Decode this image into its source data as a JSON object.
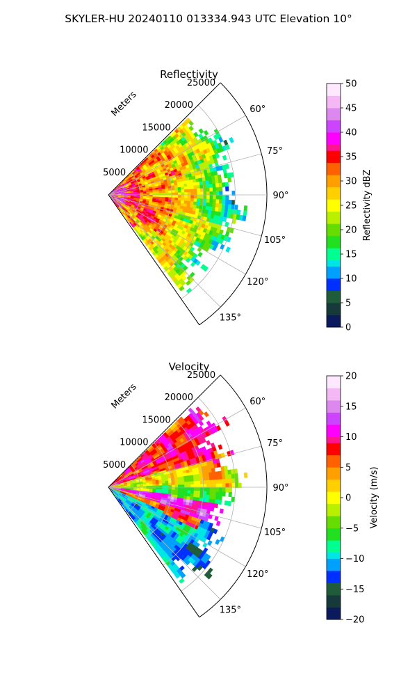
{
  "figure": {
    "suptitle": "SKYLER-HU  20240110  013334.943 UTC Elevation 10°"
  },
  "chart_data": [
    {
      "type": "heatmap",
      "projection": "polar-sector",
      "title": "Reflectivity",
      "radial_axis_label": "Meters",
      "radial_range": [
        0,
        25000
      ],
      "radial_ticks": [
        5000,
        10000,
        15000,
        20000,
        25000
      ],
      "radial_tick_labels": [
        "5000",
        "10000",
        "15000",
        "20000",
        "25000"
      ],
      "azimuth_range_deg": [
        45,
        145
      ],
      "azimuth_ticks": [
        60,
        75,
        90,
        105,
        120,
        135
      ],
      "azimuth_tick_labels": [
        "60°",
        "75°",
        "90°",
        "105°",
        "120°",
        "135°"
      ],
      "grid": true,
      "colorbar": {
        "label": "Reflectivity dBZ",
        "range": [
          0,
          50
        ],
        "ticks": [
          0,
          5,
          10,
          15,
          20,
          25,
          30,
          35,
          40,
          45,
          50
        ],
        "tick_labels": [
          "0",
          "5",
          "10",
          "15",
          "20",
          "25",
          "30",
          "35",
          "40",
          "45",
          "50"
        ]
      },
      "colormap": [
        "#0a1a5c",
        "#163a3a",
        "#1f5c3a",
        "#0030ff",
        "#00a0ff",
        "#00e5e5",
        "#00ff90",
        "#20e020",
        "#66dd00",
        "#b8f000",
        "#ffff00",
        "#ffd000",
        "#ffa000",
        "#ff6000",
        "#ff0000",
        "#ff1493",
        "#ff00ff",
        "#cc44ff",
        "#dd88ee",
        "#f4b8f4",
        "#fde8fd"
      ],
      "data_extent_km": 22,
      "dominant_value_range": [
        20,
        40
      ]
    },
    {
      "type": "heatmap",
      "projection": "polar-sector",
      "title": "Velocity",
      "radial_axis_label": "Meters",
      "radial_range": [
        0,
        25000
      ],
      "radial_ticks": [
        5000,
        10000,
        15000,
        20000,
        25000
      ],
      "radial_tick_labels": [
        "5000",
        "10000",
        "15000",
        "20000",
        "25000"
      ],
      "azimuth_range_deg": [
        45,
        145
      ],
      "azimuth_ticks": [
        60,
        75,
        90,
        105,
        120,
        135
      ],
      "azimuth_tick_labels": [
        "60°",
        "75°",
        "90°",
        "105°",
        "120°",
        "135°"
      ],
      "grid": true,
      "colorbar": {
        "label": "Velocity (m/s)",
        "range": [
          -20,
          20
        ],
        "ticks": [
          -20,
          -15,
          -10,
          -5,
          0,
          5,
          10,
          15,
          20
        ],
        "tick_labels": [
          "−20",
          "−15",
          "−10",
          "−5",
          "0",
          "5",
          "10",
          "15",
          "20"
        ]
      },
      "colormap": [
        "#0a1a5c",
        "#163a3a",
        "#1f5c3a",
        "#0030ff",
        "#00a0ff",
        "#00e5e5",
        "#00ff90",
        "#20e020",
        "#66dd00",
        "#b8f000",
        "#ffff00",
        "#ffd000",
        "#ffa000",
        "#ff6000",
        "#ff0000",
        "#ff1493",
        "#ff00ff",
        "#cc44ff",
        "#dd88ee",
        "#f4b8f4",
        "#fde8fd"
      ],
      "data_extent_km": 22,
      "dominant_value_range": [
        -15,
        15
      ]
    }
  ]
}
